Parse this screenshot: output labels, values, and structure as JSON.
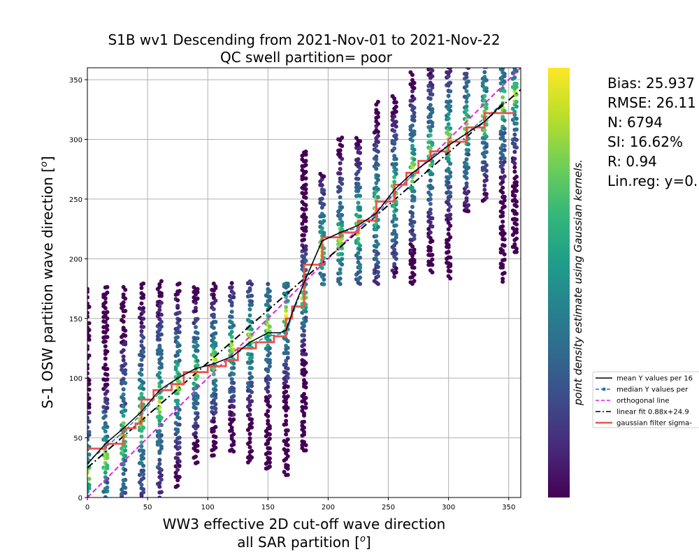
{
  "chart_data": {
    "type": "scatter",
    "title": "S1B wv1 Descending from 2021-Nov-01 to 2021-Nov-22",
    "subtitle": "QC swell partition= poor",
    "xlabel_line1": "WW3 effective 2D cut-off wave direction",
    "xlabel_line2": "all SAR partition [",
    "xlabel_unit": "o",
    "xlabel_close": "]",
    "ylabel_main": "S-1 OSW partition wave direction [",
    "ylabel_unit": "o",
    "ylabel_close": "]",
    "xlim": [
      0,
      360
    ],
    "ylim": [
      0,
      360
    ],
    "xticks": [
      0,
      50,
      100,
      150,
      200,
      250,
      300,
      350
    ],
    "yticks": [
      0,
      50,
      100,
      150,
      200,
      250,
      300,
      350
    ],
    "grid": true,
    "colorbar_label": "point density estimate using Gaussian kernels.",
    "colormap": [
      "#440154",
      "#482878",
      "#3e4989",
      "#31688e",
      "#26828e",
      "#1f9e89",
      "#35b779",
      "#6ece58",
      "#b5de2b",
      "#fde725"
    ],
    "stats": [
      "Bias: 25.937",
      "RMSE: 26.11",
      "N: 6794",
      "SI: 16.62%",
      "R: 0.94",
      "Lin.reg: y=0."
    ],
    "legend": [
      {
        "label": "mean Y values per 16",
        "style": "solid",
        "color": "#000000"
      },
      {
        "label": "median Y values per",
        "style": "dashed-dot-marker",
        "color": "#1f77b4"
      },
      {
        "label": "orthogonal line",
        "style": "dashed",
        "color": "#e020e0"
      },
      {
        "label": "linear fit 0.88x+24.9",
        "style": "dashdot",
        "color": "#000000"
      },
      {
        "label": "gaussian filter sigma-",
        "style": "solid-thick",
        "color": "#e8534a"
      }
    ],
    "linear_fit": {
      "slope": 0.88,
      "intercept": 24.9
    },
    "scatter_columns": [
      {
        "x": 0,
        "ymin": 0,
        "ymax": 175,
        "dense": [
          0,
          40
        ]
      },
      {
        "x": 15,
        "ymin": 0,
        "ymax": 175,
        "dense": [
          10,
          55
        ]
      },
      {
        "x": 30,
        "ymin": 0,
        "ymax": 175,
        "dense": [
          20,
          80
        ]
      },
      {
        "x": 45,
        "ymin": 0,
        "ymax": 178,
        "dense": [
          35,
          100
        ]
      },
      {
        "x": 60,
        "ymin": 0,
        "ymax": 180,
        "dense": [
          50,
          110
        ]
      },
      {
        "x": 75,
        "ymin": 10,
        "ymax": 178,
        "dense": [
          70,
          120
        ]
      },
      {
        "x": 90,
        "ymin": 30,
        "ymax": 175,
        "dense": [
          85,
          125
        ]
      },
      {
        "x": 105,
        "ymin": 35,
        "ymax": 178,
        "dense": [
          95,
          135
        ]
      },
      {
        "x": 120,
        "ymin": 40,
        "ymax": 180,
        "dense": [
          105,
          145
        ]
      },
      {
        "x": 135,
        "ymin": 30,
        "ymax": 180,
        "dense": [
          110,
          155
        ]
      },
      {
        "x": 150,
        "ymin": 25,
        "ymax": 180,
        "dense": [
          120,
          165
        ]
      },
      {
        "x": 165,
        "ymin": 20,
        "ymax": 180,
        "dense": [
          130,
          175
        ]
      },
      {
        "x": 180,
        "ymin": 40,
        "ymax": 290,
        "dense": [
          150,
          185
        ]
      },
      {
        "x": 195,
        "ymin": 180,
        "ymax": 270,
        "dense": [
          185,
          230
        ]
      },
      {
        "x": 210,
        "ymin": 180,
        "ymax": 300,
        "dense": [
          190,
          240
        ]
      },
      {
        "x": 225,
        "ymin": 180,
        "ymax": 300,
        "dense": [
          200,
          250
        ]
      },
      {
        "x": 240,
        "ymin": 180,
        "ymax": 330,
        "dense": [
          215,
          265
        ]
      },
      {
        "x": 255,
        "ymin": 185,
        "ymax": 335,
        "dense": [
          230,
          280
        ]
      },
      {
        "x": 270,
        "ymin": 180,
        "ymax": 355,
        "dense": [
          250,
          300
        ]
      },
      {
        "x": 285,
        "ymin": 190,
        "ymax": 358,
        "dense": [
          265,
          315
        ]
      },
      {
        "x": 300,
        "ymin": 185,
        "ymax": 360,
        "dense": [
          275,
          325
        ]
      },
      {
        "x": 315,
        "ymin": 240,
        "ymax": 360,
        "dense": [
          285,
          335
        ]
      },
      {
        "x": 330,
        "ymin": 250,
        "ymax": 360,
        "dense": [
          295,
          345
        ]
      },
      {
        "x": 345,
        "ymin": 180,
        "ymax": 360,
        "dense": [
          305,
          355
        ]
      },
      {
        "x": 355,
        "ymin": 205,
        "ymax": 360,
        "dense": [
          315,
          360
        ]
      }
    ],
    "series": [
      {
        "name": "mean Y values per 16",
        "x": [
          0,
          15,
          30,
          45,
          60,
          75,
          90,
          105,
          120,
          135,
          150,
          160,
          165,
          172,
          180,
          195,
          210,
          225,
          240,
          255,
          270,
          285,
          300,
          315,
          330,
          345
        ],
        "y": [
          28,
          45,
          58,
          72,
          90,
          100,
          108,
          112,
          118,
          130,
          138,
          138,
          140,
          160,
          180,
          215,
          222,
          228,
          238,
          258,
          272,
          283,
          295,
          305,
          315,
          330
        ]
      },
      {
        "name": "median Y values per",
        "x": [
          0,
          15,
          30,
          45,
          60,
          75,
          90,
          105,
          120,
          135,
          150,
          165,
          180,
          195,
          210,
          225,
          240,
          255,
          270,
          285,
          300,
          315,
          330,
          345
        ],
        "y": [
          30,
          42,
          55,
          70,
          88,
          100,
          108,
          112,
          118,
          128,
          135,
          138,
          180,
          215,
          222,
          226,
          236,
          255,
          270,
          285,
          295,
          305,
          318,
          330
        ]
      },
      {
        "name": "gaussian filter sigma-",
        "x": [
          0,
          15,
          15,
          30,
          30,
          40,
          40,
          45,
          45,
          55,
          55,
          70,
          70,
          80,
          80,
          100,
          100,
          115,
          115,
          125,
          125,
          140,
          140,
          155,
          155,
          165,
          165,
          170,
          170,
          180,
          180,
          195,
          195,
          210,
          210,
          225,
          225,
          240,
          240,
          255,
          255,
          265,
          265,
          275,
          275,
          285,
          285,
          300,
          300,
          315,
          315,
          330,
          330,
          345,
          345,
          355
        ],
        "y": [
          41,
          41,
          45,
          45,
          58,
          58,
          62,
          62,
          82,
          82,
          90,
          90,
          95,
          95,
          105,
          105,
          110,
          110,
          115,
          115,
          125,
          125,
          130,
          130,
          135,
          135,
          150,
          150,
          160,
          160,
          195,
          195,
          218,
          218,
          222,
          222,
          232,
          232,
          248,
          248,
          262,
          262,
          272,
          272,
          282,
          282,
          290,
          290,
          298,
          298,
          310,
          310,
          322,
          322,
          322,
          322
        ]
      }
    ]
  }
}
